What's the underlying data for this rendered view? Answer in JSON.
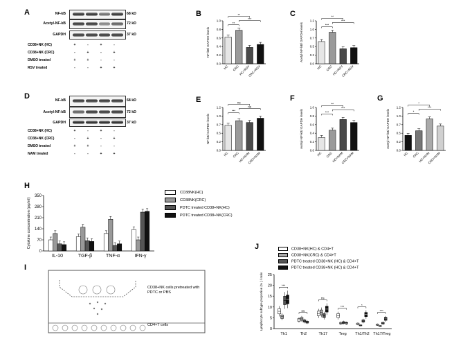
{
  "panel_letters": [
    "A",
    "B",
    "C",
    "D",
    "E",
    "F",
    "G",
    "H",
    "I",
    "J"
  ],
  "blot_A": {
    "bands": [
      "NF-kB",
      "Acetyl-NF-kB",
      "GAPDH"
    ],
    "kd": [
      "68 kD",
      "72 kD",
      "37 kD"
    ],
    "conditions": [
      {
        "label": "CD38+NK (HC)",
        "marks": [
          "+",
          "-",
          "+",
          "-"
        ]
      },
      {
        "label": "CD38+NK (CRC)",
        "marks": [
          "-",
          "+",
          "-",
          "+"
        ]
      },
      {
        "label": "DMSO treated",
        "marks": [
          "+",
          "+",
          "-",
          "-"
        ]
      },
      {
        "label": "RSV treated",
        "marks": [
          "-",
          "-",
          "+",
          "+"
        ]
      }
    ]
  },
  "blot_D": {
    "bands": [
      "NF-kB",
      "Acetyl-NF-kB",
      "GAPDH"
    ],
    "kd": [
      "68 kD",
      "72 kD",
      "37 kD"
    ],
    "conditions": [
      {
        "label": "CD38+NK (HC)",
        "marks": [
          "+",
          "-",
          "+",
          "-"
        ]
      },
      {
        "label": "CD38+NK (CRC)",
        "marks": [
          "-",
          "+",
          "-",
          "+"
        ]
      },
      {
        "label": "DMSO treated",
        "marks": [
          "+",
          "+",
          "-",
          "-"
        ]
      },
      {
        "label": "NAM treated",
        "marks": [
          "-",
          "-",
          "+",
          "+"
        ]
      }
    ]
  },
  "illustration_I": {
    "top_label": "CD38+NK cells pretreated with PDTC or PBS",
    "bottom_label": "CD4+T cells"
  },
  "chart_data": [
    {
      "panel": "B",
      "type": "bar",
      "ylabel": "NF-kB/ GAPDH levels",
      "categories": [
        "HC",
        "CRC",
        "HC+RSV",
        "CRC+RSV"
      ],
      "values": [
        0.62,
        0.78,
        0.38,
        0.45
      ],
      "ylim": [
        0,
        1
      ],
      "significance": [
        "**",
        "***",
        "**"
      ],
      "colors": [
        "#e6e6e6",
        "#9a9a9a",
        "#4a4a4a",
        "#111111"
      ]
    },
    {
      "panel": "C",
      "type": "bar",
      "ylabel": "Acetyl-NF-kB/ GAPDH levels",
      "categories": [
        "HC",
        "CRC",
        "HC+RSV",
        "CRC+RSV"
      ],
      "values": [
        0.62,
        0.88,
        0.42,
        0.45
      ],
      "ylim": [
        0,
        1.2
      ],
      "significance": [
        "***",
        "***",
        "**"
      ],
      "colors": [
        "#e6e6e6",
        "#9a9a9a",
        "#4a4a4a",
        "#111111"
      ]
    },
    {
      "panel": "E",
      "type": "bar",
      "ylabel": "NF-kB/ GAPDH levels",
      "categories": [
        "HC",
        "CRC",
        "HC+NAM",
        "CRC+NAM"
      ],
      "values": [
        0.7,
        0.83,
        0.78,
        0.9
      ],
      "ylim": [
        0,
        1.2
      ],
      "significance": [
        "***",
        "ns",
        "ns"
      ],
      "colors": [
        "#e6e6e6",
        "#9a9a9a",
        "#4a4a4a",
        "#111111"
      ]
    },
    {
      "panel": "F",
      "type": "bar",
      "ylabel": "Acetyl-NF-kB/ GAPDH levels",
      "categories": [
        "HC",
        "CRC",
        "HC+NAM",
        "CRC+NAM"
      ],
      "values": [
        0.3,
        0.47,
        0.72,
        0.65
      ],
      "ylim": [
        0,
        1.0
      ],
      "significance": [
        "***",
        "***",
        "**"
      ],
      "yticks": [
        "0.0",
        "0.2",
        "0.4",
        "0.6",
        "0.8",
        "1.0"
      ],
      "colors": [
        "#e6e6e6",
        "#9a9a9a",
        "#4a4a4a",
        "#111111"
      ]
    },
    {
      "panel": "G",
      "type": "bar",
      "ylabel": "Acetyl-NF-kB/ GAPDH levels",
      "categories": [
        "HC",
        "CRC",
        "HC+NAM",
        "CRC+NAM"
      ],
      "values": [
        0.42,
        0.55,
        0.88,
        0.68
      ],
      "ylim": [
        0,
        1.2
      ],
      "significance": [
        "*",
        "***",
        "*"
      ],
      "colors": [
        "#111111",
        "#777777",
        "#aaaaaa",
        "#d0d0d0"
      ]
    },
    {
      "panel": "H",
      "type": "bar",
      "ylabel": "Cytokine concentration (pg/ml)",
      "categories": [
        "IL-10",
        "TGF-β",
        "TNF-α",
        "IFN-γ"
      ],
      "yticks": [
        "0",
        "70",
        "140",
        "210",
        "280",
        "350"
      ],
      "ylim": [
        0,
        350
      ],
      "series": [
        {
          "name": "CD38NK(HC)",
          "values": [
            70,
            90,
            110,
            135
          ],
          "color": "#ffffff"
        },
        {
          "name": "CD38NK(CRC)",
          "values": [
            110,
            150,
            200,
            70
          ],
          "color": "#999999"
        },
        {
          "name": "PDTC treated CD38+NK(HC)",
          "values": [
            45,
            65,
            35,
            245
          ],
          "color": "#555555"
        },
        {
          "name": "PDTC treated CD38+NK(CRC)",
          "values": [
            40,
            60,
            45,
            250
          ],
          "color": "#111111"
        }
      ]
    },
    {
      "panel": "J",
      "type": "box",
      "ylabel": "Lymphocyte subtype proportion (% ) / ratio",
      "categories": [
        "Th1",
        "Th2",
        "Th17",
        "Treg",
        "Th1/Th2",
        "Th17/Treg"
      ],
      "yticks": [
        "0",
        "5",
        "10",
        "15",
        "20",
        "25"
      ],
      "ylim": [
        0,
        25
      ],
      "significance": [
        "***",
        "ns",
        "ns",
        "***",
        "*",
        "***"
      ],
      "series": [
        {
          "name": "CD38+NK(HC) & CD4+T",
          "medians": [
            8,
            4,
            7,
            6,
            2.2,
            1.8
          ],
          "color": "#ffffff"
        },
        {
          "name": "CD38+NK(CRC) & CD4+T",
          "medians": [
            5.5,
            4.5,
            7.5,
            2.5,
            1.5,
            1.2
          ],
          "color": "#aaaaaa"
        },
        {
          "name": "PDTC treated CD38+NK (HC) & CD4+T",
          "medians": [
            13,
            3.5,
            6,
            2.8,
            3.5,
            2.5
          ],
          "color": "#555555"
        },
        {
          "name": "PDTC treated CD38+NK (HC) & CD4+T",
          "medians": [
            13.5,
            3,
            9,
            2.5,
            6.5,
            4.5
          ],
          "color": "#111111"
        }
      ]
    }
  ]
}
